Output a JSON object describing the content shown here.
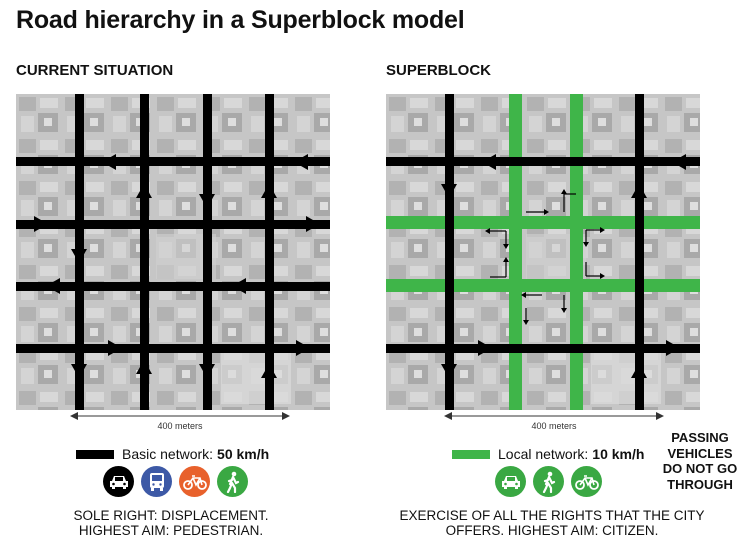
{
  "title": "Road hierarchy in a Superblock model",
  "current": {
    "heading": "CURRENT SITUATION",
    "scale_label": "400 meters",
    "legend_label": "Basic network:",
    "legend_speed": "50 km/h",
    "legend_color": "#000000",
    "icons": [
      {
        "name": "car-icon",
        "color": "#000000"
      },
      {
        "name": "bus-icon",
        "color": "#3d59a6"
      },
      {
        "name": "bicycle-icon",
        "color": "#e8612c"
      },
      {
        "name": "pedestrian-icon",
        "color": "#3aa843"
      }
    ],
    "caption_line1": "SOLE RIGHT: DISPLACEMENT.",
    "caption_line2": "HIGHEST AIM: PEDESTRIAN."
  },
  "superblock": {
    "heading": "SUPERBLOCK",
    "scale_label": "400 meters",
    "legend_label": "Local network:",
    "legend_speed": "10 km/h",
    "legend_color": "#3fb549",
    "icons": [
      {
        "name": "car-icon",
        "color": "#3aa843"
      },
      {
        "name": "pedestrian-icon",
        "color": "#3aa843"
      },
      {
        "name": "bicycle-icon",
        "color": "#3aa843"
      }
    ],
    "caption_line1": "EXERCISE OF ALL THE RIGHTS THAT THE CITY",
    "caption_line2": "OFFERS. HIGHEST AIM: CITIZEN."
  },
  "passing": {
    "line1": "PASSING",
    "line2": "VEHICLES",
    "line3": "DO NOT GO",
    "line4": "THROUGH"
  },
  "colors": {
    "road": "#000000",
    "local_road": "#3fb549",
    "map_background": "#c9c9c9"
  }
}
